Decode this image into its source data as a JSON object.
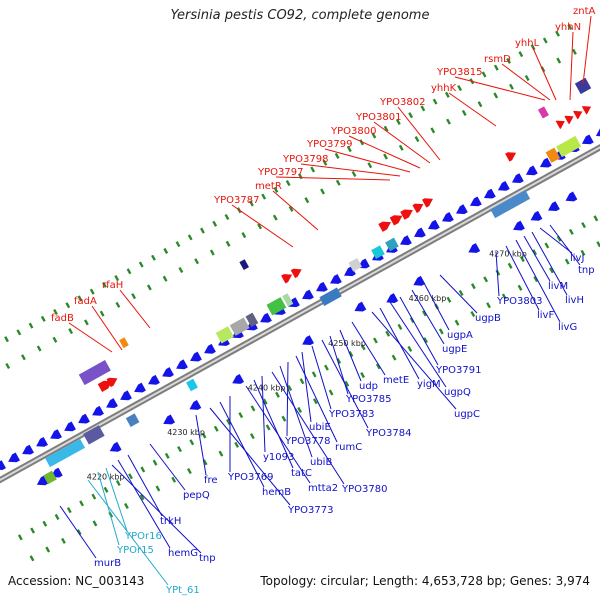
{
  "title": "Yersinia pestis CO92, complete genome",
  "footer": {
    "accession": "Accession: NC_003143",
    "summary": "Topology: circular; Length: 4,653,728 bp; Genes: 3,974"
  },
  "colors": {
    "red_label": "#e8140a",
    "blue_label": "#1010c8",
    "cyan_label": "#22aacc",
    "backbone": "#9a9a9a"
  },
  "ticks": [
    {
      "label": "4220 kbp"
    },
    {
      "label": "4230 kbp"
    },
    {
      "label": "4240 kbp"
    },
    {
      "label": "4250 kbp"
    },
    {
      "label": "4260 kbp"
    },
    {
      "label": "4270 kbp"
    }
  ],
  "labels_top": [
    {
      "text": "zntA"
    },
    {
      "text": "yhhN"
    },
    {
      "text": "yhhL"
    },
    {
      "text": "rsmD"
    },
    {
      "text": "YPO3815"
    },
    {
      "text": "yhhK"
    },
    {
      "text": "YPO3802"
    },
    {
      "text": "YPO3801"
    },
    {
      "text": "YPO3800"
    },
    {
      "text": "YPO3799"
    },
    {
      "text": "YPO3798"
    },
    {
      "text": "YPO3797"
    },
    {
      "text": "metR"
    },
    {
      "text": "YPO3787"
    },
    {
      "text": "rfaH"
    },
    {
      "text": "fadA"
    },
    {
      "text": "fadB"
    }
  ],
  "labels_bottom": [
    {
      "text": "tnp"
    },
    {
      "text": "livJ"
    },
    {
      "text": "livH"
    },
    {
      "text": "livM"
    },
    {
      "text": "livG"
    },
    {
      "text": "livF"
    },
    {
      "text": "YPO3803"
    },
    {
      "text": "ugpB"
    },
    {
      "text": "ugpA"
    },
    {
      "text": "ugpE"
    },
    {
      "text": "YPO3791"
    },
    {
      "text": "ugpQ"
    },
    {
      "text": "yigM"
    },
    {
      "text": "ugpC"
    },
    {
      "text": "metE"
    },
    {
      "text": "udp"
    },
    {
      "text": "YPO3785"
    },
    {
      "text": "YPO3784"
    },
    {
      "text": "YPO3783"
    },
    {
      "text": "ubiE"
    },
    {
      "text": "rumC"
    },
    {
      "text": "YPO3778"
    },
    {
      "text": "ubiB"
    },
    {
      "text": "YPO3780"
    },
    {
      "text": "y1093"
    },
    {
      "text": "tatC"
    },
    {
      "text": "mtta2"
    },
    {
      "text": "YPO3769"
    },
    {
      "text": "hemB"
    },
    {
      "text": "YPO3773"
    },
    {
      "text": "fre"
    },
    {
      "text": "pepQ"
    },
    {
      "text": "trkH"
    },
    {
      "text": "hemG"
    },
    {
      "text": "tnp"
    },
    {
      "text": "YPOr16"
    },
    {
      "text": "YPOr15"
    },
    {
      "text": "murB"
    },
    {
      "text": "YPt_61"
    }
  ]
}
